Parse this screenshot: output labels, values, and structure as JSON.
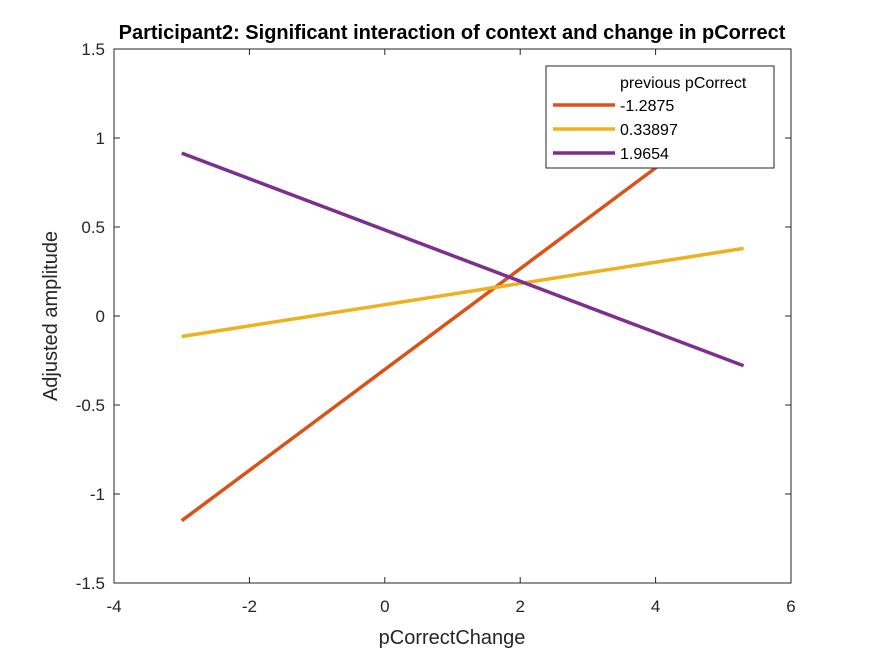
{
  "chart_data": {
    "type": "line",
    "title": "Participant2: Significant interaction of context and change in pCorrect",
    "xlabel": "pCorrectChange",
    "ylabel": "Adjusted amplitude",
    "xlim": [
      -4,
      6
    ],
    "ylim": [
      -1.5,
      1.5
    ],
    "xticks": [
      -4,
      -2,
      0,
      2,
      4,
      6
    ],
    "xtick_labels": [
      "-4",
      "-2",
      "0",
      "2",
      "4",
      "6"
    ],
    "yticks": [
      -1.5,
      -1,
      -0.5,
      0,
      0.5,
      1,
      1.5
    ],
    "ytick_labels": [
      "-1.5",
      "-1",
      "-0.5",
      "0",
      "0.5",
      "1",
      "1.5"
    ],
    "grid": false,
    "legend": {
      "title": "previous pCorrect",
      "placement": "top-right"
    },
    "series": [
      {
        "name": "-1.2875",
        "color": "#D95319",
        "x": [
          -3.0,
          5.3
        ],
        "y": [
          -1.15,
          1.2
        ]
      },
      {
        "name": "0.33897",
        "color": "#EDB120",
        "x": [
          -3.0,
          5.3
        ],
        "y": [
          -0.115,
          0.38
        ]
      },
      {
        "name": "1.9654",
        "color": "#7E2F8E",
        "x": [
          -3.0,
          5.3
        ],
        "y": [
          0.915,
          -0.28
        ]
      }
    ]
  }
}
